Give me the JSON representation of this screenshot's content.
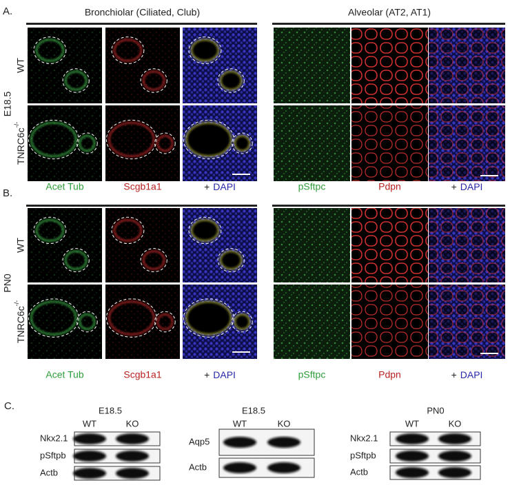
{
  "panel_a": {
    "letter": "A.",
    "stage": "E18.5",
    "genotype_wt": "WT",
    "genotype_ko": "TNRC6c",
    "genotype_ko_sup": "-/-",
    "bronchiolar": {
      "title": "Bronchiolar (Ciliated, Club)",
      "stains": [
        "Acet Tub",
        "Scgb1a1"
      ],
      "merge_plus": "+",
      "merge_stain": "DAPI"
    },
    "alveolar": {
      "title": "Alveolar (AT2, AT1)",
      "stains": [
        "pSftpc",
        "Pdpn"
      ],
      "merge_plus": "+",
      "merge_stain": "DAPI"
    }
  },
  "panel_b": {
    "letter": "B.",
    "stage": "PN0",
    "genotype_wt": "WT",
    "genotype_ko": "TNRC6c",
    "genotype_ko_sup": "-/-",
    "bronchiolar": {
      "stains": [
        "Acet Tub",
        "Scgb1a1"
      ],
      "merge_plus": "+",
      "merge_stain": "DAPI"
    },
    "alveolar": {
      "stains": [
        "pSftpc",
        "Pdpn"
      ],
      "merge_plus": "+",
      "merge_stain": "DAPI"
    }
  },
  "panel_c": {
    "letter": "C.",
    "blots": [
      {
        "title": "E18.5",
        "lanes": [
          "WT",
          "KO"
        ],
        "proteins": [
          "Nkx2.1",
          "pSftpb",
          "Actb"
        ]
      },
      {
        "title": "E18.5",
        "lanes": [
          "WT",
          "KO"
        ],
        "proteins": [
          "Aqp5",
          "Actb"
        ]
      },
      {
        "title": "PN0",
        "lanes": [
          "WT",
          "KO"
        ],
        "proteins": [
          "Nkx2.1",
          "pSftpb",
          "Actb"
        ]
      }
    ]
  }
}
